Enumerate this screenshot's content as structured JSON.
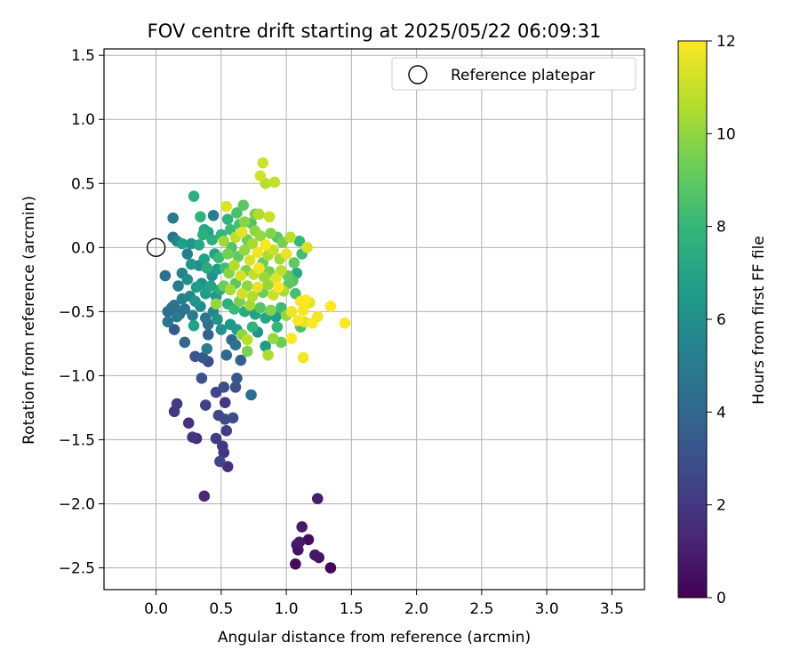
{
  "chart_data": {
    "type": "scatter",
    "title": "FOV centre drift starting at 2025/05/22 06:09:31",
    "xlabel": "Angular distance from reference (arcmin)",
    "ylabel": "Rotation from reference (arcmin)",
    "xlim": [
      -0.4,
      3.75
    ],
    "ylim": [
      -2.67,
      1.55
    ],
    "xticks": [
      "0.0",
      "0.5",
      "1.0",
      "1.5",
      "2.0",
      "2.5",
      "3.0",
      "3.5"
    ],
    "yticks": [
      "1.5",
      "1.0",
      "0.5",
      "0.0",
      "−0.5",
      "−1.0",
      "−1.5",
      "−2.0",
      "−2.5"
    ],
    "grid": true,
    "legend": {
      "position": "top-right",
      "label": "Reference platepar"
    },
    "reference_point": {
      "x": 0.0,
      "y": 0.0
    },
    "colorbar": {
      "label": "Hours from first FF file",
      "min": 0,
      "max": 12,
      "ticks": [
        "0",
        "2",
        "4",
        "6",
        "8",
        "10",
        "12"
      ],
      "colormap": "viridis"
    },
    "colormap_stops": [
      "#440154",
      "#482878",
      "#3e4989",
      "#31688e",
      "#26828e",
      "#1f9e89",
      "#35b779",
      "#6ece58",
      "#b5de2b",
      "#fde725"
    ],
    "points": [
      {
        "x": 1.08,
        "y": -2.32,
        "h": 0.5
      },
      {
        "x": 1.09,
        "y": -2.36,
        "h": 0.6
      },
      {
        "x": 1.07,
        "y": -2.47,
        "h": 0.3
      },
      {
        "x": 1.17,
        "y": -2.28,
        "h": 0.4
      },
      {
        "x": 1.22,
        "y": -2.4,
        "h": 0.8
      },
      {
        "x": 1.25,
        "y": -2.42,
        "h": 0.7
      },
      {
        "x": 1.34,
        "y": -2.5,
        "h": 0.1
      },
      {
        "x": 1.12,
        "y": -2.18,
        "h": 0.9
      },
      {
        "x": 1.24,
        "y": -1.96,
        "h": 1.0
      },
      {
        "x": 1.1,
        "y": -2.3,
        "h": 0.9
      },
      {
        "x": 0.37,
        "y": -1.94,
        "h": 1.4
      },
      {
        "x": 0.55,
        "y": -1.71,
        "h": 1.6
      },
      {
        "x": 0.49,
        "y": -1.67,
        "h": 2.6
      },
      {
        "x": 0.52,
        "y": -1.6,
        "h": 1.8
      },
      {
        "x": 0.51,
        "y": -1.55,
        "h": 2.0
      },
      {
        "x": 0.46,
        "y": -1.49,
        "h": 2.2
      },
      {
        "x": 0.28,
        "y": -1.48,
        "h": 1.9
      },
      {
        "x": 0.31,
        "y": -1.49,
        "h": 1.5
      },
      {
        "x": 0.25,
        "y": -1.37,
        "h": 1.7
      },
      {
        "x": 0.14,
        "y": -1.28,
        "h": 2.0
      },
      {
        "x": 0.16,
        "y": -1.22,
        "h": 2.2
      },
      {
        "x": 0.38,
        "y": -1.23,
        "h": 2.4
      },
      {
        "x": 0.48,
        "y": -1.31,
        "h": 2.5
      },
      {
        "x": 0.53,
        "y": -1.34,
        "h": 2.7
      },
      {
        "x": 0.59,
        "y": -1.33,
        "h": 2.9
      },
      {
        "x": 0.54,
        "y": -1.43,
        "h": 2.3
      },
      {
        "x": 0.53,
        "y": -1.21,
        "h": 1.9
      },
      {
        "x": 0.46,
        "y": -1.13,
        "h": 2.6
      },
      {
        "x": 0.52,
        "y": -1.09,
        "h": 2.8
      },
      {
        "x": 0.61,
        "y": -1.09,
        "h": 3.0
      },
      {
        "x": 0.62,
        "y": -1.02,
        "h": 3.3
      },
      {
        "x": 0.35,
        "y": -1.02,
        "h": 3.1
      },
      {
        "x": 0.73,
        "y": -1.15,
        "h": 4.3
      },
      {
        "x": 0.3,
        "y": -0.85,
        "h": 3.2
      },
      {
        "x": 0.36,
        "y": -0.86,
        "h": 3.4
      },
      {
        "x": 0.4,
        "y": -0.89,
        "h": 2.8
      },
      {
        "x": 0.54,
        "y": -0.84,
        "h": 4.0
      },
      {
        "x": 0.65,
        "y": -0.88,
        "h": 3.6
      },
      {
        "x": 0.22,
        "y": -0.74,
        "h": 3.9
      },
      {
        "x": 0.39,
        "y": -0.79,
        "h": 5.0
      },
      {
        "x": 0.4,
        "y": -0.68,
        "h": 3.8
      },
      {
        "x": 0.58,
        "y": -0.72,
        "h": 4.1
      },
      {
        "x": 0.61,
        "y": -0.76,
        "h": 4.4
      },
      {
        "x": 0.14,
        "y": -0.64,
        "h": 3.5
      },
      {
        "x": 0.29,
        "y": -0.61,
        "h": 6.8
      },
      {
        "x": 0.09,
        "y": -0.58,
        "h": 4.7
      },
      {
        "x": 0.09,
        "y": -0.5,
        "h": 4.2
      },
      {
        "x": 0.14,
        "y": -0.45,
        "h": 4.6
      },
      {
        "x": 0.18,
        "y": -0.52,
        "h": 4.0
      },
      {
        "x": 0.22,
        "y": -0.48,
        "h": 4.5
      },
      {
        "x": 0.2,
        "y": -0.4,
        "h": 5.3
      },
      {
        "x": 0.12,
        "y": -0.47,
        "h": 3.9
      },
      {
        "x": 0.16,
        "y": -0.54,
        "h": 4.9
      },
      {
        "x": 0.28,
        "y": -0.53,
        "h": 5.1
      },
      {
        "x": 0.38,
        "y": -0.55,
        "h": 4.8
      },
      {
        "x": 0.4,
        "y": -0.6,
        "h": 4.3
      },
      {
        "x": 0.44,
        "y": -0.5,
        "h": 5.6
      },
      {
        "x": 0.47,
        "y": -0.56,
        "h": 6.1
      },
      {
        "x": 0.34,
        "y": -0.46,
        "h": 5.8
      },
      {
        "x": 0.3,
        "y": -0.42,
        "h": 6.2
      },
      {
        "x": 0.26,
        "y": -0.38,
        "h": 5.5
      },
      {
        "x": 0.07,
        "y": -0.22,
        "h": 4.4
      },
      {
        "x": 0.17,
        "y": -0.3,
        "h": 5.0
      },
      {
        "x": 0.2,
        "y": -0.2,
        "h": 5.4
      },
      {
        "x": 0.24,
        "y": -0.25,
        "h": 5.9
      },
      {
        "x": 0.31,
        "y": -0.31,
        "h": 6.5
      },
      {
        "x": 0.35,
        "y": -0.28,
        "h": 6.0
      },
      {
        "x": 0.38,
        "y": -0.36,
        "h": 6.6
      },
      {
        "x": 0.42,
        "y": -0.3,
        "h": 7.0
      },
      {
        "x": 0.46,
        "y": -0.38,
        "h": 6.3
      },
      {
        "x": 0.49,
        "y": -0.33,
        "h": 7.3
      },
      {
        "x": 0.27,
        "y": -0.13,
        "h": 6.4
      },
      {
        "x": 0.33,
        "y": -0.14,
        "h": 5.7
      },
      {
        "x": 0.37,
        "y": -0.09,
        "h": 6.9
      },
      {
        "x": 0.39,
        "y": -0.16,
        "h": 7.4
      },
      {
        "x": 0.24,
        "y": -0.05,
        "h": 5.2
      },
      {
        "x": 0.2,
        "y": 0.03,
        "h": 6.7
      },
      {
        "x": 0.16,
        "y": 0.05,
        "h": 5.3
      },
      {
        "x": 0.13,
        "y": 0.08,
        "h": 4.6
      },
      {
        "x": 0.27,
        "y": 0.03,
        "h": 6.3
      },
      {
        "x": 0.33,
        "y": 0.02,
        "h": 7.1
      },
      {
        "x": 0.36,
        "y": 0.1,
        "h": 7.6
      },
      {
        "x": 0.37,
        "y": 0.14,
        "h": 7.2
      },
      {
        "x": 0.4,
        "y": 0.12,
        "h": 6.8
      },
      {
        "x": 0.34,
        "y": 0.24,
        "h": 7.8
      },
      {
        "x": 0.29,
        "y": 0.4,
        "h": 7.5
      },
      {
        "x": 0.13,
        "y": 0.23,
        "h": 4.9
      },
      {
        "x": 0.44,
        "y": 0.25,
        "h": 5.0
      },
      {
        "x": 0.55,
        "y": 0.22,
        "h": 7.7
      },
      {
        "x": 0.62,
        "y": 0.27,
        "h": 8.5
      },
      {
        "x": 0.54,
        "y": 0.32,
        "h": 11.4
      },
      {
        "x": 0.67,
        "y": 0.33,
        "h": 8.9
      },
      {
        "x": 0.68,
        "y": 0.2,
        "h": 9.8
      },
      {
        "x": 0.76,
        "y": 0.26,
        "h": 9.6
      },
      {
        "x": 0.79,
        "y": 0.26,
        "h": 10.6
      },
      {
        "x": 0.87,
        "y": 0.24,
        "h": 11.0
      },
      {
        "x": 0.84,
        "y": 0.5,
        "h": 10.7
      },
      {
        "x": 0.8,
        "y": 0.56,
        "h": 11.2
      },
      {
        "x": 0.82,
        "y": 0.66,
        "h": 11.1
      },
      {
        "x": 0.91,
        "y": 0.51,
        "h": 10.9
      },
      {
        "x": 0.52,
        "y": 0.05,
        "h": 10.2
      },
      {
        "x": 0.55,
        "y": -0.05,
        "h": 9.4
      },
      {
        "x": 0.58,
        "y": 0.0,
        "h": 8.7
      },
      {
        "x": 0.61,
        "y": 0.08,
        "h": 10.8
      },
      {
        "x": 0.63,
        "y": -0.07,
        "h": 9.1
      },
      {
        "x": 0.66,
        "y": 0.12,
        "h": 11.5
      },
      {
        "x": 0.68,
        "y": -0.02,
        "h": 10.0
      },
      {
        "x": 0.7,
        "y": 0.06,
        "h": 9.3
      },
      {
        "x": 0.72,
        "y": -0.1,
        "h": 11.3
      },
      {
        "x": 0.74,
        "y": 0.03,
        "h": 10.4
      },
      {
        "x": 0.76,
        "y": 0.13,
        "h": 9.9
      },
      {
        "x": 0.78,
        "y": -0.04,
        "h": 11.7
      },
      {
        "x": 0.8,
        "y": 0.09,
        "h": 10.1
      },
      {
        "x": 0.82,
        "y": -0.12,
        "h": 9.2
      },
      {
        "x": 0.84,
        "y": 0.02,
        "h": 11.9
      },
      {
        "x": 0.86,
        "y": -0.06,
        "h": 10.5
      },
      {
        "x": 0.88,
        "y": 0.11,
        "h": 9.7
      },
      {
        "x": 0.9,
        "y": -0.02,
        "h": 11.0
      },
      {
        "x": 0.93,
        "y": 0.08,
        "h": 8.8
      },
      {
        "x": 0.95,
        "y": -0.09,
        "h": 10.3
      },
      {
        "x": 0.97,
        "y": 0.04,
        "h": 9.5
      },
      {
        "x": 1.0,
        "y": -0.05,
        "h": 11.6
      },
      {
        "x": 1.03,
        "y": 0.08,
        "h": 10.7
      },
      {
        "x": 1.06,
        "y": -0.12,
        "h": 9.0
      },
      {
        "x": 0.73,
        "y": 0.19,
        "h": 8.6
      },
      {
        "x": 0.64,
        "y": 0.18,
        "h": 8.4
      },
      {
        "x": 0.57,
        "y": 0.14,
        "h": 8.2
      },
      {
        "x": 0.5,
        "y": 0.1,
        "h": 7.9
      },
      {
        "x": 0.48,
        "y": -0.08,
        "h": 8.1
      },
      {
        "x": 0.53,
        "y": -0.16,
        "h": 8.3
      },
      {
        "x": 0.56,
        "y": -0.2,
        "h": 9.8
      },
      {
        "x": 0.6,
        "y": -0.14,
        "h": 10.6
      },
      {
        "x": 0.65,
        "y": -0.22,
        "h": 11.2
      },
      {
        "x": 0.69,
        "y": -0.18,
        "h": 9.6
      },
      {
        "x": 0.75,
        "y": -0.21,
        "h": 10.9
      },
      {
        "x": 0.79,
        "y": -0.16,
        "h": 11.8
      },
      {
        "x": 0.83,
        "y": -0.23,
        "h": 10.2
      },
      {
        "x": 0.87,
        "y": -0.19,
        "h": 9.4
      },
      {
        "x": 0.92,
        "y": -0.24,
        "h": 11.4
      },
      {
        "x": 0.96,
        "y": -0.18,
        "h": 10.8
      },
      {
        "x": 1.01,
        "y": -0.22,
        "h": 9.1
      },
      {
        "x": 1.05,
        "y": -0.26,
        "h": 8.7
      },
      {
        "x": 1.08,
        "y": -0.2,
        "h": 7.2
      },
      {
        "x": 1.12,
        "y": -0.05,
        "h": 8.3
      },
      {
        "x": 1.16,
        "y": 0.0,
        "h": 11.3
      },
      {
        "x": 1.1,
        "y": 0.05,
        "h": 8.0
      },
      {
        "x": 0.52,
        "y": -0.3,
        "h": 9.2
      },
      {
        "x": 0.57,
        "y": -0.33,
        "h": 10.4
      },
      {
        "x": 0.61,
        "y": -0.28,
        "h": 8.9
      },
      {
        "x": 0.66,
        "y": -0.36,
        "h": 11.1
      },
      {
        "x": 0.7,
        "y": -0.3,
        "h": 9.9
      },
      {
        "x": 0.74,
        "y": -0.38,
        "h": 10.6
      },
      {
        "x": 0.78,
        "y": -0.31,
        "h": 11.6
      },
      {
        "x": 0.82,
        "y": -0.35,
        "h": 9.3
      },
      {
        "x": 0.86,
        "y": -0.29,
        "h": 10.1
      },
      {
        "x": 0.9,
        "y": -0.37,
        "h": 11.0
      },
      {
        "x": 0.94,
        "y": -0.31,
        "h": 12.0
      },
      {
        "x": 0.98,
        "y": -0.34,
        "h": 10.5
      },
      {
        "x": 1.02,
        "y": -0.28,
        "h": 9.0
      },
      {
        "x": 1.07,
        "y": -0.36,
        "h": 8.4
      },
      {
        "x": 1.11,
        "y": -0.42,
        "h": 11.8
      },
      {
        "x": 1.15,
        "y": -0.41,
        "h": 12.0
      },
      {
        "x": 1.18,
        "y": -0.43,
        "h": 11.5
      },
      {
        "x": 1.13,
        "y": -0.49,
        "h": 11.9
      },
      {
        "x": 0.55,
        "y": -0.44,
        "h": 7.6
      },
      {
        "x": 0.6,
        "y": -0.48,
        "h": 8.1
      },
      {
        "x": 0.64,
        "y": -0.42,
        "h": 9.5
      },
      {
        "x": 0.68,
        "y": -0.5,
        "h": 7.3
      },
      {
        "x": 0.72,
        "y": -0.45,
        "h": 10.3
      },
      {
        "x": 0.76,
        "y": -0.52,
        "h": 6.9
      },
      {
        "x": 0.8,
        "y": -0.47,
        "h": 8.8
      },
      {
        "x": 0.84,
        "y": -0.55,
        "h": 7.1
      },
      {
        "x": 0.88,
        "y": -0.49,
        "h": 9.7
      },
      {
        "x": 0.92,
        "y": -0.54,
        "h": 6.7
      },
      {
        "x": 0.96,
        "y": -0.47,
        "h": 8.2
      },
      {
        "x": 1.0,
        "y": -0.53,
        "h": 10.0
      },
      {
        "x": 1.04,
        "y": -0.5,
        "h": 11.7
      },
      {
        "x": 1.09,
        "y": -0.57,
        "h": 11.9
      },
      {
        "x": 1.14,
        "y": -0.58,
        "h": 11.4
      },
      {
        "x": 1.2,
        "y": -0.59,
        "h": 12.0
      },
      {
        "x": 1.24,
        "y": -0.54,
        "h": 11.8
      },
      {
        "x": 1.34,
        "y": -0.46,
        "h": 12.0
      },
      {
        "x": 1.45,
        "y": -0.59,
        "h": 12.0
      },
      {
        "x": 1.04,
        "y": -0.71,
        "h": 12.0
      },
      {
        "x": 1.13,
        "y": -0.86,
        "h": 11.8
      },
      {
        "x": 0.57,
        "y": -0.6,
        "h": 6.4
      },
      {
        "x": 0.62,
        "y": -0.64,
        "h": 6.6
      },
      {
        "x": 0.66,
        "y": -0.68,
        "h": 9.9
      },
      {
        "x": 0.7,
        "y": -0.72,
        "h": 10.7
      },
      {
        "x": 0.74,
        "y": -0.62,
        "h": 7.8
      },
      {
        "x": 0.78,
        "y": -0.66,
        "h": 6.2
      },
      {
        "x": 0.84,
        "y": -0.77,
        "h": 6.5
      },
      {
        "x": 0.9,
        "y": -0.71,
        "h": 10.1
      },
      {
        "x": 0.96,
        "y": -0.74,
        "h": 9.2
      },
      {
        "x": 0.7,
        "y": -0.81,
        "h": 9.6
      },
      {
        "x": 0.86,
        "y": -0.84,
        "h": 10.5
      },
      {
        "x": 1.11,
        "y": -0.62,
        "h": 8.6
      },
      {
        "x": 0.93,
        "y": -0.62,
        "h": 8.0
      },
      {
        "x": 0.5,
        "y": -0.64,
        "h": 6.1
      },
      {
        "x": 0.46,
        "y": -0.44,
        "h": 10.0
      },
      {
        "x": 0.43,
        "y": -0.22,
        "h": 6.0
      },
      {
        "x": 0.47,
        "y": -0.17,
        "h": 6.6
      },
      {
        "x": 0.45,
        "y": -0.05,
        "h": 7.0
      },
      {
        "x": 0.43,
        "y": 0.06,
        "h": 7.5
      }
    ]
  }
}
